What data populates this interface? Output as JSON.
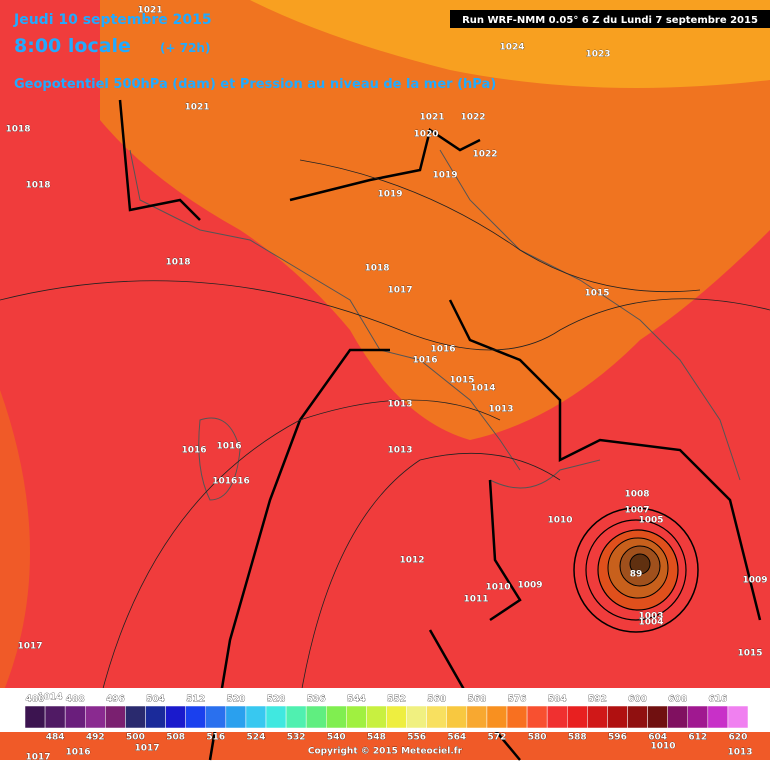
{
  "header": {
    "date": "Jeudi 10 septembre 2015",
    "time": "8:00 locale",
    "lead": "(+ 72h)",
    "subtitle": "Geopotentiel 500hPa (dam) et Pression au niveau de la mer (hPa)",
    "run": "Run WRF-NMM 0.05° 6 Z du Lundi 7 septembre 2015"
  },
  "isobar_labels": [
    1021,
    1024,
    1023,
    1021,
    1021,
    1022,
    1018,
    1020,
    1022,
    1018,
    1019,
    1019,
    1018,
    1018,
    1017,
    1015,
    1016,
    1016,
    1015,
    1014,
    1013,
    1013,
    1013,
    1016,
    1016,
    101616,
    1008,
    1007,
    1005,
    1010,
    1012,
    1010,
    1009,
    1011,
    89,
    1003,
    1004,
    1017,
    1009,
    1015,
    1014,
    1016,
    1017,
    1017,
    1010,
    1013
  ],
  "colorbar": {
    "labels": [
      480,
      484,
      488,
      492,
      496,
      500,
      504,
      508,
      512,
      516,
      520,
      524,
      528,
      532,
      536,
      540,
      544,
      548,
      552,
      556,
      560,
      564,
      568,
      572,
      576,
      580,
      584,
      588,
      592,
      596,
      600,
      604,
      608,
      612,
      616,
      620
    ],
    "colors": [
      "#3c1450",
      "#501a64",
      "#6a1e7c",
      "#8a2a90",
      "#7a2070",
      "#2a2a6e",
      "#1a2a9a",
      "#1a1acc",
      "#1a40ee",
      "#2a70ee",
      "#2aa0ee",
      "#38c8f0",
      "#40e8e0",
      "#50f0b0",
      "#60ee80",
      "#80ee50",
      "#a0f040",
      "#c8f040",
      "#eeee40",
      "#f0f080",
      "#f8e060",
      "#f8c840",
      "#f8a830",
      "#f89020",
      "#f87020",
      "#f85030",
      "#f03030",
      "#e82020",
      "#d01818",
      "#b01010",
      "#901010",
      "#701010",
      "#801060",
      "#a01890",
      "#c830c8",
      "#f080f0"
    ]
  },
  "copyright": "Copyright © 2015 Meteociel.fr"
}
